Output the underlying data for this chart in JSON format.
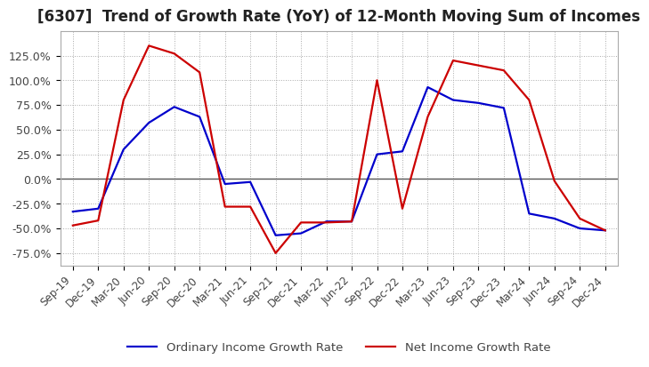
{
  "title": "[6307]  Trend of Growth Rate (YoY) of 12-Month Moving Sum of Incomes",
  "title_fontsize": 12,
  "ylim": [
    -0.875,
    1.5
  ],
  "yticks": [
    -0.75,
    -0.5,
    -0.25,
    0.0,
    0.25,
    0.5,
    0.75,
    1.0,
    1.25
  ],
  "ytick_labels": [
    "-75.0%",
    "-50.0%",
    "-25.0%",
    "0.0%",
    "25.0%",
    "50.0%",
    "75.0%",
    "100.0%",
    "125.0%"
  ],
  "x_labels": [
    "Sep-19",
    "Dec-19",
    "Mar-20",
    "Jun-20",
    "Sep-20",
    "Dec-20",
    "Mar-21",
    "Jun-21",
    "Sep-21",
    "Dec-21",
    "Mar-22",
    "Jun-22",
    "Sep-22",
    "Dec-22",
    "Mar-23",
    "Jun-23",
    "Sep-23",
    "Dec-23",
    "Mar-24",
    "Jun-24",
    "Sep-24",
    "Dec-24"
  ],
  "ordinary_income": [
    -0.33,
    -0.3,
    0.3,
    0.57,
    0.73,
    0.63,
    -0.05,
    -0.03,
    -0.57,
    -0.55,
    -0.43,
    -0.43,
    0.25,
    0.28,
    0.93,
    0.8,
    0.77,
    0.72,
    -0.35,
    -0.4,
    -0.5,
    -0.52
  ],
  "net_income": [
    -0.47,
    -0.42,
    0.8,
    1.35,
    1.27,
    1.08,
    -0.28,
    -0.28,
    -0.75,
    -0.44,
    -0.44,
    -0.43,
    1.0,
    -0.3,
    0.63,
    1.2,
    1.15,
    1.1,
    0.8,
    -0.02,
    -0.4,
    -0.52
  ],
  "ordinary_color": "#0000cc",
  "net_color": "#cc0000",
  "line_width": 1.6,
  "legend_labels": [
    "Ordinary Income Growth Rate",
    "Net Income Growth Rate"
  ],
  "background_color": "#ffffff",
  "grid_color": "#aaaaaa",
  "zero_line_color": "#555555"
}
